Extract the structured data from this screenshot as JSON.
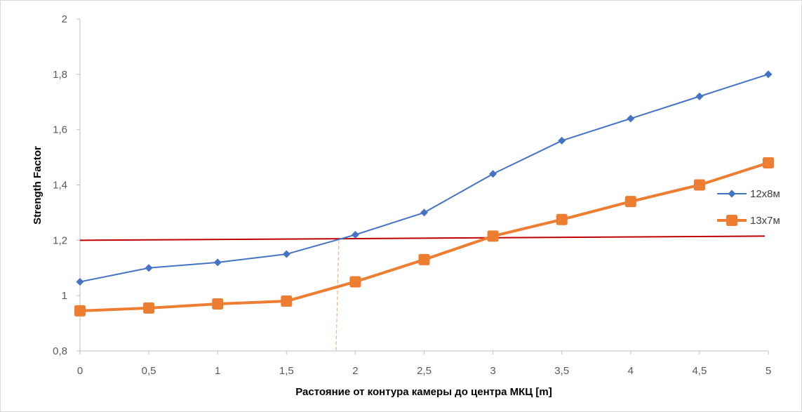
{
  "chart_data": {
    "type": "line",
    "title": "",
    "xlabel": "Растояние от контура камеры до центра МКЦ [m]",
    "ylabel": "Strength Factor",
    "xlim": [
      0,
      5
    ],
    "ylim": [
      0.8,
      2
    ],
    "x_ticks": [
      "0",
      "0,5",
      "1",
      "1,5",
      "2",
      "2,5",
      "3",
      "3,5",
      "4",
      "4,5",
      "5"
    ],
    "y_ticks": [
      "0,8",
      "1",
      "1,2",
      "1,4",
      "1,6",
      "1,8",
      "2"
    ],
    "grid": false,
    "legend_position": "right",
    "x": [
      0,
      0.5,
      1,
      1.5,
      2,
      2.5,
      3,
      3.5,
      4,
      4.5,
      5
    ],
    "series": [
      {
        "name": "12x8м",
        "values": [
          1.05,
          1.1,
          1.12,
          1.15,
          1.22,
          1.3,
          1.44,
          1.56,
          1.64,
          1.72,
          1.8
        ],
        "color": "#4472C4",
        "marker": "diamond"
      },
      {
        "name": "13x7м",
        "values": [
          0.945,
          0.955,
          0.97,
          0.98,
          1.05,
          1.13,
          1.215,
          1.275,
          1.34,
          1.4,
          1.48
        ],
        "color": "#ED7D31",
        "marker": "square"
      }
    ],
    "reference_line": {
      "y_start": 1.2,
      "y_end": 1.215,
      "color": "#C00000"
    },
    "vertical_marker": {
      "x": 1.87,
      "color": "#F4B183"
    }
  }
}
